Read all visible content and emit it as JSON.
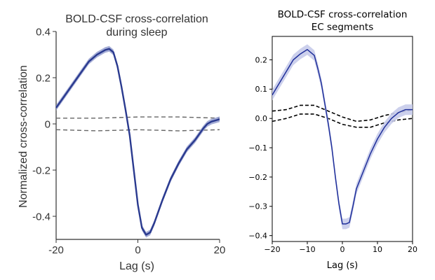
{
  "chart_data": [
    {
      "type": "line",
      "title": "BOLD-CSF cross-correlation",
      "subtitle": "during sleep",
      "xlabel": "Lag (s)",
      "ylabel": "Normalized cross-correlation",
      "xlim": [
        -20,
        20
      ],
      "ylim": [
        -0.5,
        0.4
      ],
      "x_ticks": [
        -20,
        0,
        20
      ],
      "x_tick_labels": [
        "-20",
        "0",
        "20"
      ],
      "y_ticks": [
        0.4,
        0.2,
        0,
        -0.2,
        -0.4
      ],
      "y_tick_labels": [
        "0.4",
        "0.2",
        "0",
        "-0.2",
        "-0.4"
      ],
      "grid": false,
      "colors": {
        "line": "#2a3a8f",
        "band": "#8f98cc",
        "threshold": "#666666",
        "axis": "#333333"
      },
      "series": [
        {
          "x": [
            -20,
            -18,
            -16,
            -14,
            -12,
            -10,
            -8,
            -7,
            -6,
            -5,
            -4,
            -3,
            -2,
            -1,
            0,
            1,
            2,
            3,
            4,
            6,
            8,
            10,
            12,
            14,
            16,
            17,
            18,
            20
          ],
          "values": [
            0.07,
            0.12,
            0.17,
            0.22,
            0.27,
            0.3,
            0.32,
            0.325,
            0.31,
            0.25,
            0.16,
            0.06,
            -0.05,
            -0.2,
            -0.35,
            -0.45,
            -0.48,
            -0.47,
            -0.43,
            -0.33,
            -0.24,
            -0.17,
            -0.11,
            -0.07,
            -0.02,
            0.0,
            0.01,
            0.02
          ],
          "band": 0.012
        }
      ],
      "thresholds": [
        {
          "x": [
            -20,
            -10,
            0,
            10,
            20
          ],
          "values": [
            0.025,
            0.025,
            0.03,
            0.03,
            0.025
          ]
        },
        {
          "x": [
            -20,
            -10,
            0,
            10,
            20
          ],
          "values": [
            -0.025,
            -0.03,
            -0.025,
            -0.03,
            -0.025
          ]
        }
      ]
    },
    {
      "type": "line",
      "title": "BOLD-CSF cross-correlation",
      "subtitle": "EC segments",
      "xlabel": "Lag (s)",
      "ylabel": "",
      "xlim": [
        -20,
        20
      ],
      "ylim": [
        -0.42,
        0.28
      ],
      "x_ticks": [
        -20,
        -10,
        0,
        10,
        20
      ],
      "x_tick_labels": [
        "−20",
        "−10",
        "0",
        "10",
        "20"
      ],
      "y_ticks": [
        0.2,
        0.1,
        0.0,
        -0.1,
        -0.2,
        -0.3,
        -0.4
      ],
      "y_tick_labels": [
        "0.2",
        "0.1",
        "0.0",
        "−0.1",
        "−0.2",
        "−0.3",
        "−0.4"
      ],
      "grid": false,
      "colors": {
        "line": "#1f2f9a",
        "band": "#c7cbea",
        "threshold": "#000000",
        "axis": "#000000"
      },
      "series": [
        {
          "x": [
            -20,
            -18,
            -16,
            -14,
            -12,
            -10,
            -8,
            -7,
            -6,
            -5,
            -4,
            -3,
            -2,
            -1,
            0,
            1,
            2,
            3,
            4,
            6,
            8,
            10,
            12,
            14,
            16,
            18,
            20
          ],
          "values": [
            0.08,
            0.12,
            0.16,
            0.2,
            0.22,
            0.235,
            0.215,
            0.17,
            0.12,
            0.05,
            -0.02,
            -0.1,
            -0.2,
            -0.29,
            -0.36,
            -0.36,
            -0.355,
            -0.3,
            -0.24,
            -0.18,
            -0.12,
            -0.07,
            -0.03,
            0.0,
            0.02,
            0.03,
            0.03
          ],
          "band": 0.018
        }
      ],
      "thresholds": [
        {
          "x": [
            -20,
            -16,
            -12,
            -8,
            -4,
            0,
            4,
            8,
            12,
            16,
            20
          ],
          "values": [
            0.025,
            0.03,
            0.045,
            0.045,
            0.025,
            0.005,
            -0.01,
            -0.005,
            0.01,
            0.02,
            0.03
          ]
        },
        {
          "x": [
            -20,
            -16,
            -12,
            -8,
            -4,
            0,
            4,
            8,
            12,
            16,
            20
          ],
          "values": [
            -0.01,
            0.0,
            0.015,
            0.015,
            0.0,
            -0.02,
            -0.03,
            -0.03,
            -0.015,
            -0.005,
            0.0
          ]
        }
      ]
    }
  ]
}
